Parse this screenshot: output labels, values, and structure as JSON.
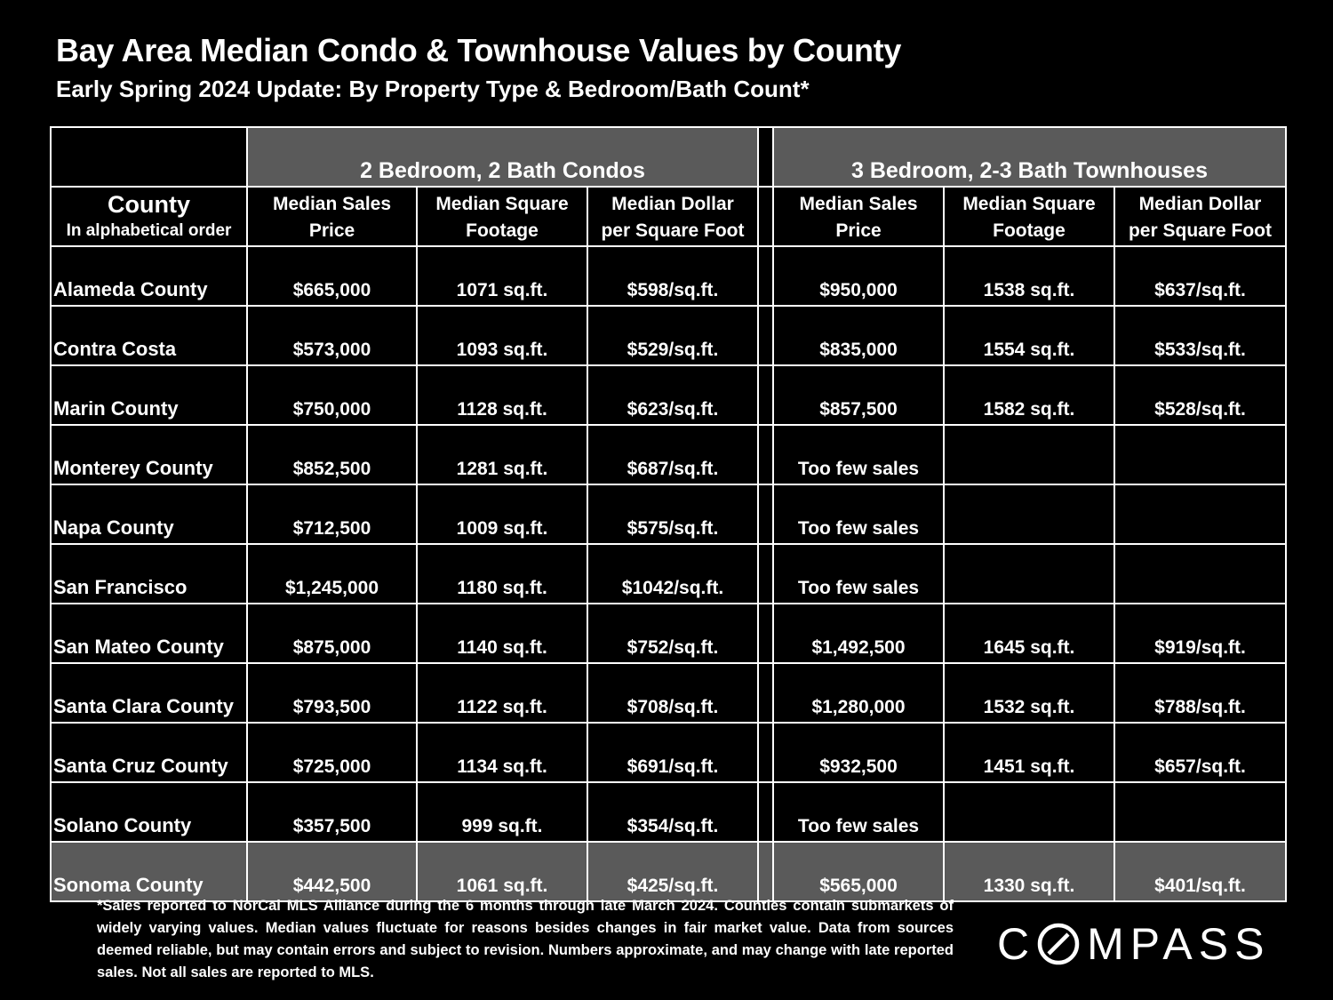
{
  "title": "Bay Area Median Condo & Townhouse Values by County",
  "subtitle": "Early Spring 2024 Update:  By Property Type & Bedroom/Bath Count*",
  "table": {
    "groups": {
      "condos": "2 Bedroom, 2 Bath Condos",
      "townhouses": "3 Bedroom, 2-3 Bath Townhouses"
    },
    "county_header": {
      "title": "County",
      "subtitle": "In alphabetical order"
    },
    "column_headers": {
      "price_1": "Median Sales",
      "price_2": "Price",
      "sqft_1": "Median Square",
      "sqft_2": "Footage",
      "ppsf_1": "Median Dollar",
      "ppsf_2": "per Square Foot"
    },
    "rows": [
      {
        "county": "Alameda County",
        "condo_price": "$665,000",
        "condo_sqft": "1071 sq.ft.",
        "condo_ppsf": "$598/sq.ft.",
        "th_price": "$950,000",
        "th_sqft": "1538 sq.ft.",
        "th_ppsf": "$637/sq.ft."
      },
      {
        "county": "Contra Costa",
        "condo_price": "$573,000",
        "condo_sqft": "1093 sq.ft.",
        "condo_ppsf": "$529/sq.ft.",
        "th_price": "$835,000",
        "th_sqft": "1554 sq.ft.",
        "th_ppsf": "$533/sq.ft."
      },
      {
        "county": "Marin County",
        "condo_price": "$750,000",
        "condo_sqft": "1128 sq.ft.",
        "condo_ppsf": "$623/sq.ft.",
        "th_price": "$857,500",
        "th_sqft": "1582 sq.ft.",
        "th_ppsf": "$528/sq.ft."
      },
      {
        "county": "Monterey County",
        "condo_price": "$852,500",
        "condo_sqft": "1281 sq.ft.",
        "condo_ppsf": "$687/sq.ft.",
        "th_price": "Too few sales",
        "th_sqft": "",
        "th_ppsf": ""
      },
      {
        "county": "Napa County",
        "condo_price": "$712,500",
        "condo_sqft": "1009 sq.ft.",
        "condo_ppsf": "$575/sq.ft.",
        "th_price": "Too few sales",
        "th_sqft": "",
        "th_ppsf": ""
      },
      {
        "county": "San Francisco",
        "condo_price": "$1,245,000",
        "condo_sqft": "1180 sq.ft.",
        "condo_ppsf": "$1042/sq.ft.",
        "th_price": "Too few sales",
        "th_sqft": "",
        "th_ppsf": ""
      },
      {
        "county": "San Mateo County",
        "condo_price": "$875,000",
        "condo_sqft": "1140 sq.ft.",
        "condo_ppsf": "$752/sq.ft.",
        "th_price": "$1,492,500",
        "th_sqft": "1645 sq.ft.",
        "th_ppsf": "$919/sq.ft."
      },
      {
        "county": "Santa Clara County",
        "condo_price": "$793,500",
        "condo_sqft": "1122 sq.ft.",
        "condo_ppsf": "$708/sq.ft.",
        "th_price": "$1,280,000",
        "th_sqft": "1532 sq.ft.",
        "th_ppsf": "$788/sq.ft."
      },
      {
        "county": "Santa Cruz County",
        "condo_price": "$725,000",
        "condo_sqft": "1134 sq.ft.",
        "condo_ppsf": "$691/sq.ft.",
        "th_price": "$932,500",
        "th_sqft": "1451 sq.ft.",
        "th_ppsf": "$657/sq.ft."
      },
      {
        "county": "Solano County",
        "condo_price": "$357,500",
        "condo_sqft": "999 sq.ft.",
        "condo_ppsf": "$354/sq.ft.",
        "th_price": "Too few sales",
        "th_sqft": "",
        "th_ppsf": ""
      },
      {
        "county": "Sonoma County",
        "condo_price": "$442,500",
        "condo_sqft": "1061 sq.ft.",
        "condo_ppsf": "$425/sq.ft.",
        "th_price": "$565,000",
        "th_sqft": "1330 sq.ft.",
        "th_ppsf": "$401/sq.ft."
      }
    ]
  },
  "footnote": "*Sales reported to NorCal MLS Alliance during the 6 months through late March 2024. Counties contain submarkets of widely varying values. Median values fluctuate for reasons besides changes in fair market value. Data from sources deemed reliable, but may contain errors and subject to revision.  Numbers approximate, and may change with late reported sales. Not all sales are reported to MLS.",
  "logo": {
    "text": "COMPASS",
    "lead": "C",
    "trail": "MPASS"
  }
}
